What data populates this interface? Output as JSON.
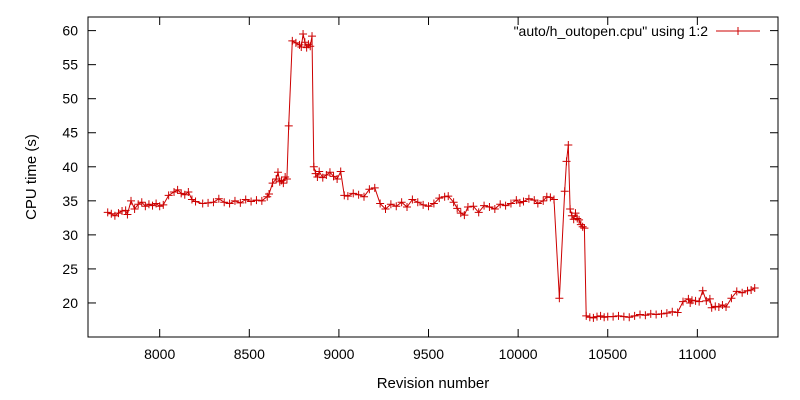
{
  "chart_data": {
    "type": "line",
    "title": "",
    "xlabel": "Revision number",
    "ylabel": "CPU time (s)",
    "xlim": [
      7600,
      11450
    ],
    "ylim": [
      15,
      62
    ],
    "x_ticks": [
      8000,
      8500,
      9000,
      9500,
      10000,
      10500,
      11000
    ],
    "y_ticks": [
      20,
      25,
      30,
      35,
      40,
      45,
      50,
      55,
      60
    ],
    "grid": false,
    "legend_position": "top-right",
    "colors": {
      "series": "#cc0000",
      "axes": "#000000"
    },
    "series": [
      {
        "name": "\"auto/h_outopen.cpu\" using 1:2",
        "marker": "plus",
        "x": [
          7710,
          7730,
          7750,
          7770,
          7790,
          7810,
          7820,
          7840,
          7860,
          7880,
          7900,
          7920,
          7940,
          7960,
          7980,
          8000,
          8020,
          8050,
          8080,
          8100,
          8120,
          8140,
          8160,
          8180,
          8200,
          8240,
          8270,
          8300,
          8330,
          8360,
          8390,
          8420,
          8450,
          8480,
          8510,
          8540,
          8570,
          8600,
          8610,
          8630,
          8650,
          8660,
          8670,
          8680,
          8690,
          8700,
          8710,
          8720,
          8740,
          8760,
          8780,
          8790,
          8800,
          8810,
          8820,
          8830,
          8840,
          8850,
          8860,
          8870,
          8880,
          8890,
          8910,
          8930,
          8950,
          8970,
          8990,
          9010,
          9030,
          9050,
          9080,
          9110,
          9140,
          9170,
          9200,
          9230,
          9260,
          9290,
          9320,
          9350,
          9380,
          9410,
          9440,
          9470,
          9500,
          9530,
          9560,
          9590,
          9610,
          9640,
          9660,
          9680,
          9700,
          9720,
          9750,
          9780,
          9810,
          9840,
          9870,
          9900,
          9930,
          9960,
          9990,
          10010,
          10030,
          10060,
          10090,
          10110,
          10140,
          10160,
          10180,
          10200,
          10230,
          10260,
          10270,
          10280,
          10290,
          10300,
          10310,
          10320,
          10330,
          10340,
          10350,
          10360,
          10370,
          10380,
          10400,
          10420,
          10440,
          10460,
          10480,
          10500,
          10530,
          10560,
          10590,
          10620,
          10650,
          10680,
          10710,
          10740,
          10770,
          10800,
          10830,
          10860,
          10890,
          10920,
          10950,
          10960,
          10970,
          10990,
          11010,
          11030,
          11050,
          11070,
          11080,
          11100,
          11120,
          11140,
          11160,
          11190,
          11220,
          11250,
          11280,
          11300,
          11320
        ],
        "y": [
          33.3,
          33.1,
          32.8,
          33.2,
          33.5,
          33.6,
          33.0,
          35.0,
          33.8,
          34.5,
          34.8,
          34.2,
          34.5,
          34.3,
          34.6,
          34.2,
          34.4,
          35.8,
          36.3,
          36.6,
          36.1,
          35.9,
          36.3,
          35.2,
          34.9,
          34.6,
          34.7,
          34.8,
          35.3,
          34.8,
          34.6,
          35.0,
          34.7,
          35.2,
          34.9,
          35.1,
          35.0,
          35.6,
          36.0,
          37.6,
          38.2,
          39.2,
          37.8,
          38.0,
          37.6,
          38.5,
          38.2,
          46.0,
          58.5,
          58.2,
          57.9,
          57.6,
          59.5,
          58.3,
          57.5,
          58.0,
          57.7,
          59.2,
          40.0,
          39.0,
          38.5,
          39.3,
          38.4,
          38.8,
          39.2,
          38.6,
          38.2,
          39.3,
          35.8,
          35.7,
          36.1,
          35.9,
          35.6,
          36.7,
          36.9,
          34.6,
          33.8,
          34.5,
          34.2,
          34.8,
          34.1,
          35.2,
          34.8,
          34.4,
          34.2,
          34.6,
          35.4,
          35.6,
          35.7,
          34.8,
          33.9,
          33.2,
          32.9,
          34.1,
          34.2,
          33.3,
          34.3,
          34.1,
          33.8,
          34.5,
          34.3,
          34.6,
          35.1,
          34.7,
          34.9,
          35.3,
          35.1,
          34.6,
          35.0,
          35.6,
          35.5,
          35.2,
          20.7,
          36.4,
          40.8,
          43.2,
          33.8,
          32.8,
          32.3,
          33.2,
          32.4,
          32.2,
          31.5,
          31.2,
          31.0,
          18.1,
          17.9,
          17.8,
          18.0,
          18.1,
          17.9,
          18.0,
          18.0,
          18.1,
          18.0,
          17.9,
          18.1,
          18.3,
          18.2,
          18.4,
          18.3,
          18.4,
          18.5,
          18.7,
          18.6,
          20.2,
          20.6,
          20.0,
          20.4,
          20.3,
          20.2,
          21.8,
          20.3,
          20.6,
          19.3,
          19.5,
          19.4,
          19.7,
          19.4,
          20.7,
          21.7,
          21.5,
          21.8,
          21.9,
          22.2
        ]
      }
    ]
  }
}
